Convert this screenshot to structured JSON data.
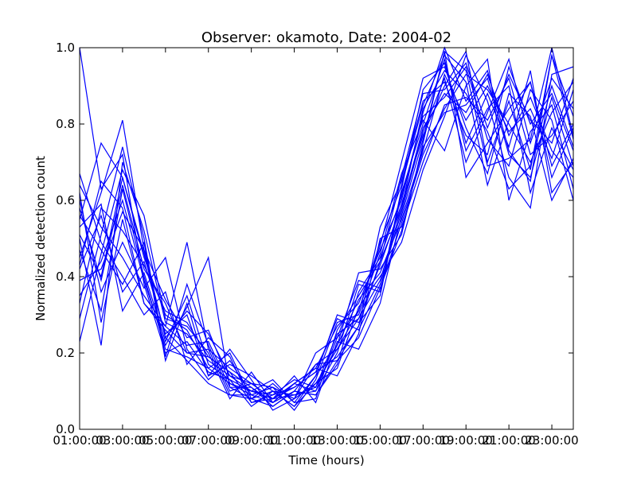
{
  "chart_data": {
    "type": "line",
    "title": "Observer: okamoto, Date: 2004-02",
    "xlabel": "Time (hours)",
    "ylabel": "Normalized detection count",
    "xlim": [
      1,
      24
    ],
    "ylim": [
      0.0,
      1.0
    ],
    "x_tick_values": [
      1,
      3,
      5,
      7,
      9,
      11,
      13,
      15,
      17,
      19,
      21,
      23
    ],
    "x_tick_labels": [
      "01:00:00",
      "03:00:00",
      "05:00:00",
      "07:00:00",
      "09:00:00",
      "11:00:00",
      "13:00:00",
      "15:00:00",
      "17:00:00",
      "19:00:00",
      "21:00:00",
      "23:00:00"
    ],
    "y_tick_values": [
      0.0,
      0.2,
      0.4,
      0.6,
      0.8,
      1.0
    ],
    "y_tick_labels": [
      "0.0",
      "0.2",
      "0.4",
      "0.6",
      "0.8",
      "1.0"
    ],
    "color": "#0000ff",
    "grid": false,
    "legend": "none",
    "x": [
      1,
      2,
      3,
      4,
      5,
      6,
      7,
      8,
      9,
      10,
      11,
      12,
      13,
      14,
      15,
      16,
      17,
      18,
      19,
      20,
      21,
      22,
      23,
      24
    ],
    "series": [
      {
        "values": [
          1.0,
          0.63,
          0.72,
          0.38,
          0.2,
          0.23,
          0.15,
          0.13,
          0.1,
          0.08,
          0.12,
          0.16,
          0.27,
          0.33,
          0.47,
          0.6,
          0.83,
          1.0,
          0.86,
          0.94,
          0.73,
          0.65,
          0.98,
          0.82
        ]
      },
      {
        "values": [
          0.55,
          0.75,
          0.66,
          0.45,
          0.3,
          0.26,
          0.16,
          0.12,
          0.09,
          0.11,
          0.08,
          0.2,
          0.24,
          0.31,
          0.48,
          0.7,
          0.92,
          0.95,
          0.79,
          0.67,
          0.88,
          0.82,
          0.6,
          0.71
        ]
      },
      {
        "values": [
          0.58,
          0.39,
          0.64,
          0.42,
          0.33,
          0.2,
          0.19,
          0.15,
          0.11,
          0.07,
          0.1,
          0.17,
          0.21,
          0.29,
          0.39,
          0.58,
          0.84,
          0.94,
          0.88,
          0.78,
          0.63,
          0.69,
          0.9,
          0.74
        ]
      },
      {
        "values": [
          0.45,
          0.62,
          0.81,
          0.47,
          0.24,
          0.18,
          0.12,
          0.09,
          0.08,
          0.1,
          0.06,
          0.14,
          0.3,
          0.28,
          0.35,
          0.62,
          0.8,
          0.97,
          0.73,
          0.84,
          0.9,
          0.62,
          0.79,
          0.68
        ]
      },
      {
        "values": [
          0.62,
          0.28,
          0.55,
          0.33,
          0.27,
          0.49,
          0.21,
          0.16,
          0.12,
          0.08,
          0.09,
          0.11,
          0.22,
          0.41,
          0.42,
          0.51,
          0.75,
          0.99,
          0.94,
          0.69,
          0.71,
          0.76,
          1.0,
          0.77
        ]
      },
      {
        "values": [
          0.35,
          0.44,
          0.6,
          0.39,
          0.22,
          0.32,
          0.45,
          0.11,
          0.08,
          0.06,
          0.1,
          0.09,
          0.18,
          0.24,
          0.37,
          0.54,
          0.72,
          0.84,
          0.93,
          0.89,
          0.8,
          0.7,
          0.83,
          0.91
        ]
      },
      {
        "values": [
          0.5,
          0.22,
          0.7,
          0.52,
          0.28,
          0.25,
          0.18,
          0.14,
          0.1,
          0.13,
          0.07,
          0.08,
          0.26,
          0.35,
          0.44,
          0.58,
          0.79,
          0.88,
          0.83,
          0.93,
          0.77,
          0.87,
          0.73,
          0.66
        ]
      },
      {
        "values": [
          0.67,
          0.49,
          0.4,
          0.3,
          0.36,
          0.17,
          0.24,
          0.19,
          0.07,
          0.09,
          0.11,
          0.15,
          0.19,
          0.27,
          0.53,
          0.65,
          0.86,
          0.91,
          0.77,
          0.72,
          0.95,
          0.8,
          0.88,
          0.73
        ]
      },
      {
        "values": [
          0.42,
          0.56,
          0.36,
          0.44,
          0.25,
          0.3,
          0.14,
          0.21,
          0.13,
          0.05,
          0.08,
          0.12,
          0.16,
          0.32,
          0.4,
          0.49,
          0.68,
          0.82,
          0.98,
          0.86,
          0.66,
          0.58,
          0.93,
          0.95
        ]
      },
      {
        "values": [
          0.29,
          0.51,
          0.74,
          0.5,
          0.19,
          0.38,
          0.22,
          0.1,
          0.12,
          0.08,
          0.14,
          0.07,
          0.23,
          0.21,
          0.33,
          0.56,
          0.76,
          0.99,
          0.66,
          0.75,
          0.84,
          0.91,
          0.69,
          0.8
        ]
      },
      {
        "values": [
          0.6,
          0.36,
          0.49,
          0.37,
          0.45,
          0.21,
          0.13,
          0.18,
          0.09,
          0.11,
          0.05,
          0.13,
          0.28,
          0.3,
          0.46,
          0.67,
          0.81,
          0.73,
          0.9,
          0.97,
          0.6,
          0.78,
          0.85,
          0.63
        ]
      },
      {
        "values": [
          0.23,
          0.46,
          0.68,
          0.56,
          0.29,
          0.27,
          0.2,
          0.08,
          0.15,
          0.07,
          0.12,
          0.16,
          0.14,
          0.25,
          0.5,
          0.53,
          0.7,
          0.85,
          0.87,
          0.81,
          0.92,
          0.72,
          0.77,
          0.86
        ]
      },
      {
        "values": [
          0.53,
          0.59,
          0.31,
          0.41,
          0.23,
          0.35,
          0.17,
          0.13,
          0.06,
          0.1,
          0.09,
          0.1,
          0.2,
          0.38,
          0.36,
          0.63,
          0.89,
          0.96,
          0.75,
          0.88,
          0.74,
          0.94,
          0.62,
          0.7
        ]
      },
      {
        "values": [
          0.39,
          0.42,
          0.57,
          0.47,
          0.34,
          0.24,
          0.26,
          0.12,
          0.1,
          0.09,
          0.13,
          0.11,
          0.25,
          0.29,
          0.43,
          0.59,
          0.77,
          0.9,
          0.99,
          0.7,
          0.86,
          0.68,
          0.98,
          0.76
        ]
      },
      {
        "values": [
          0.47,
          0.31,
          0.63,
          0.4,
          0.21,
          0.19,
          0.16,
          0.2,
          0.08,
          0.12,
          0.07,
          0.14,
          0.22,
          0.34,
          0.41,
          0.55,
          0.73,
          0.93,
          0.81,
          0.9,
          0.78,
          0.84,
          0.71,
          0.89
        ]
      },
      {
        "values": [
          0.64,
          0.53,
          0.45,
          0.35,
          0.27,
          0.22,
          0.23,
          0.11,
          0.11,
          0.06,
          0.1,
          0.09,
          0.17,
          0.36,
          0.45,
          0.61,
          0.82,
          0.87,
          0.95,
          0.76,
          0.69,
          0.89,
          0.81,
          0.6
        ]
      },
      {
        "values": [
          0.33,
          0.58,
          0.52,
          0.43,
          0.31,
          0.28,
          0.19,
          0.15,
          0.07,
          0.08,
          0.11,
          0.15,
          0.29,
          0.26,
          0.38,
          0.57,
          0.78,
          0.92,
          0.7,
          0.83,
          0.97,
          0.75,
          0.92,
          0.84
        ]
      },
      {
        "values": [
          0.56,
          0.47,
          0.38,
          0.49,
          0.18,
          0.33,
          0.14,
          0.17,
          0.14,
          0.1,
          0.06,
          0.12,
          0.21,
          0.31,
          0.49,
          0.64,
          0.85,
          0.98,
          0.91,
          0.64,
          0.81,
          0.91,
          0.66,
          0.79
        ]
      },
      {
        "values": [
          0.43,
          0.65,
          0.58,
          0.33,
          0.26,
          0.2,
          0.21,
          0.09,
          0.09,
          0.07,
          0.12,
          0.1,
          0.24,
          0.39,
          0.37,
          0.52,
          0.74,
          0.83,
          0.85,
          0.92,
          0.72,
          0.66,
          0.87,
          0.69
        ]
      },
      {
        "values": [
          0.51,
          0.4,
          0.66,
          0.46,
          0.24,
          0.31,
          0.25,
          0.14,
          0.12,
          0.11,
          0.08,
          0.17,
          0.18,
          0.27,
          0.44,
          0.66,
          0.88,
          0.89,
          0.96,
          0.79,
          0.93,
          0.81,
          0.75,
          0.92
        ]
      }
    ]
  }
}
